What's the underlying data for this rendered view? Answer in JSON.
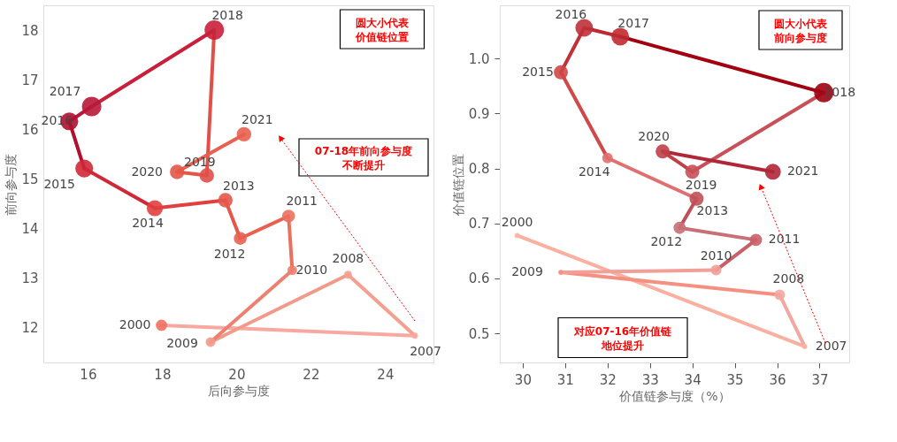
{
  "chart_data": [
    {
      "type": "bubble",
      "xlabel": "后向参与度",
      "ylabel": "前向参与度",
      "marker": "circle",
      "line_style": "solid",
      "x": [
        17.98,
        24.8,
        23.0,
        19.3,
        21.5,
        21.4,
        20.1,
        19.7,
        17.8,
        15.9,
        15.5,
        16.1,
        19.4,
        19.2,
        18.4,
        20.2
      ],
      "values": [
        12.05,
        11.84,
        13.07,
        11.71,
        13.16,
        14.25,
        13.8,
        14.57,
        14.41,
        15.21,
        16.16,
        16.46,
        18.0,
        15.07,
        15.14,
        15.9
      ],
      "sizes": [
        0.34,
        0.1,
        0.17,
        0.25,
        0.25,
        0.44,
        0.44,
        0.56,
        0.69,
        0.84,
        0.84,
        1.0,
        1.0,
        0.56,
        0.56,
        0.56
      ],
      "colors": [
        "#f07060",
        "#f8a8a0",
        "#f4a090",
        "#f29a8a",
        "#ee8070",
        "#ec7060",
        "#e86050",
        "#e45848",
        "#e04040",
        "#d02838",
        "#b01030",
        "#b81838",
        "#c8203a",
        "#e05048",
        "#e25848",
        "#e86050"
      ],
      "xlim": [
        14.8,
        25.3
      ],
      "ylim": [
        11.3,
        18.5
      ],
      "xticks": [
        16,
        18,
        20,
        22,
        24
      ],
      "yticks": [
        12,
        13,
        14,
        15,
        16,
        17,
        18
      ],
      "annotations": [
        {
          "text": "2000",
          "x": 17.98,
          "y": 12.05
        },
        {
          "text": "2007",
          "x": 24.8,
          "y": 11.84
        },
        {
          "text": "2008",
          "x": 23.0,
          "y": 13.07
        },
        {
          "text": "2009",
          "x": 19.3,
          "y": 11.71
        },
        {
          "text": "2010",
          "x": 21.5,
          "y": 13.16
        },
        {
          "text": "2011",
          "x": 21.4,
          "y": 14.25
        },
        {
          "text": "2012",
          "x": 20.1,
          "y": 13.8
        },
        {
          "text": "2013",
          "x": 19.7,
          "y": 14.57
        },
        {
          "text": "2014",
          "x": 17.8,
          "y": 14.41
        },
        {
          "text": "2015",
          "x": 15.9,
          "y": 15.21
        },
        {
          "text": "2016",
          "x": 15.5,
          "y": 16.16
        },
        {
          "text": "2017",
          "x": 16.1,
          "y": 16.46
        },
        {
          "text": "2018",
          "x": 19.4,
          "y": 18.0
        },
        {
          "text": "2019",
          "x": 19.2,
          "y": 15.07
        },
        {
          "text": "2020",
          "x": 18.4,
          "y": 15.14
        },
        {
          "text": "2021",
          "x": 20.2,
          "y": 15.9
        },
        "圆大小代表价值链位置",
        "07-18年前向参与度不断提升"
      ]
    },
    {
      "type": "bubble",
      "xlabel": "价值链参与度（%）",
      "ylabel": "价值链位置",
      "marker": "circle",
      "line_style": "solid",
      "x": [
        29.87,
        36.65,
        36.06,
        30.9,
        34.56,
        35.5,
        33.7,
        34.1,
        32.0,
        30.9,
        31.45,
        32.3,
        37.1,
        34.0,
        33.3,
        35.9
      ],
      "values": [
        0.678,
        0.476,
        0.57,
        0.611,
        0.615,
        0.67,
        0.692,
        0.745,
        0.819,
        0.975,
        1.056,
        1.04,
        0.938,
        0.794,
        0.831,
        0.794
      ],
      "sizes": [
        0.07,
        0.07,
        0.3,
        0.07,
        0.3,
        0.4,
        0.4,
        0.53,
        0.3,
        0.53,
        0.83,
        0.83,
        1.0,
        0.53,
        0.53,
        0.67
      ],
      "colors": [
        "#f9b6a8",
        "#f9b0a0",
        "#f2a8a0",
        "#f59080",
        "#f0a098",
        "#c86068",
        "#c87078",
        "#c05058",
        "#e07070",
        "#d04848",
        "#c03038",
        "#c02830",
        "#a00010",
        "#c85058",
        "#c04048",
        "#b02838"
      ],
      "xlim": [
        29.46,
        37.7
      ],
      "ylim": [
        0.447,
        1.097
      ],
      "xticks": [
        30,
        31,
        32,
        33,
        34,
        35,
        36,
        37
      ],
      "yticks": [
        {
          "value": 0.5,
          "label": "0.5"
        },
        {
          "value": 0.6,
          "label": "0.6"
        },
        {
          "value": 0.7,
          "label": "0.7"
        },
        {
          "value": 0.8,
          "label": "0.8"
        },
        {
          "value": 0.9,
          "label": "0.9"
        },
        {
          "value": 1,
          "label": "1.0"
        }
      ],
      "annotations": [
        {
          "text": "2000",
          "x": 29.87,
          "y": 0.678
        },
        {
          "text": "2007",
          "x": 36.65,
          "y": 0.476
        },
        {
          "text": "2008",
          "x": 36.06,
          "y": 0.57
        },
        {
          "text": "2009",
          "x": 30.9,
          "y": 0.611
        },
        {
          "text": "2010",
          "x": 34.56,
          "y": 0.615
        },
        {
          "text": "2011",
          "x": 35.5,
          "y": 0.67
        },
        {
          "text": "2012",
          "x": 33.7,
          "y": 0.692
        },
        {
          "text": "2013",
          "x": 34.1,
          "y": 0.745
        },
        {
          "text": "2014",
          "x": 32.0,
          "y": 0.819
        },
        {
          "text": "2015",
          "x": 30.9,
          "y": 0.975
        },
        {
          "text": "2016",
          "x": 31.45,
          "y": 1.056
        },
        {
          "text": "2017",
          "x": 32.3,
          "y": 1.04
        },
        {
          "text": "2018",
          "x": 37.1,
          "y": 0.938
        },
        {
          "text": "2019",
          "x": 34.0,
          "y": 0.794
        },
        {
          "text": "2020",
          "x": 33.3,
          "y": 0.831
        },
        {
          "text": "2021",
          "x": 35.9,
          "y": 0.794
        },
        "圆大小代表前向参与度",
        "对应07-16年价值链地位提升"
      ]
    }
  ]
}
